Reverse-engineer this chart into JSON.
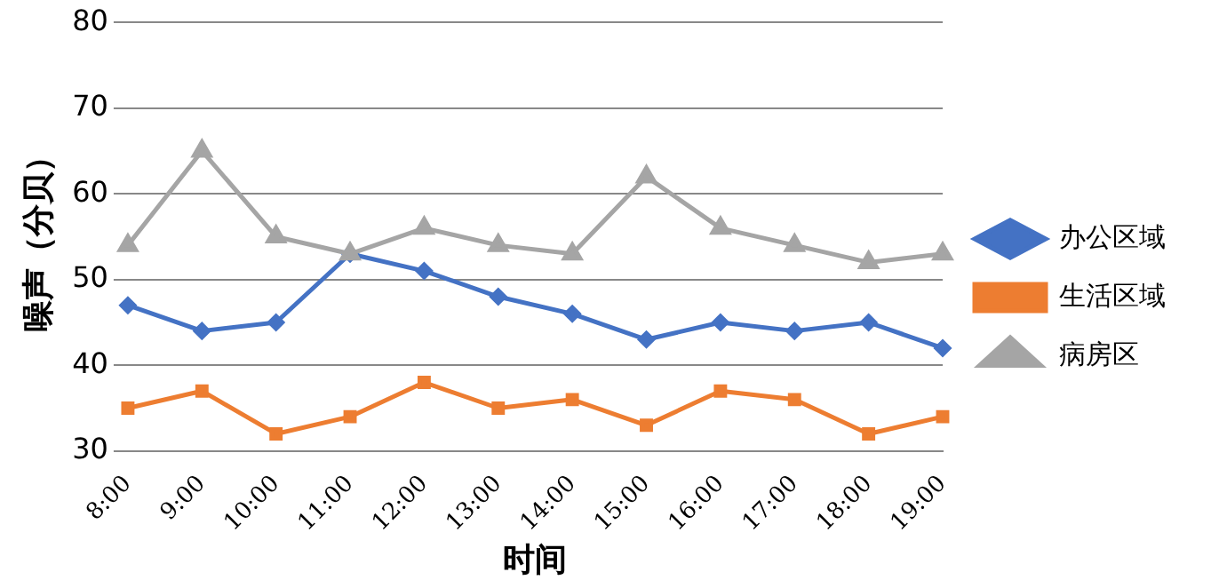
{
  "chart_data": {
    "type": "line",
    "xlabel": "时间",
    "ylabel": "噪声（分贝）",
    "categories": [
      "8:00",
      "9:00",
      "10:00",
      "11:00",
      "12:00",
      "13:00",
      "14:00",
      "15:00",
      "16:00",
      "17:00",
      "18:00",
      "19:00"
    ],
    "series": [
      {
        "name": "办公区域",
        "color": "#4472c4",
        "marker": "diamond",
        "values": [
          47,
          44,
          45,
          53,
          51,
          48,
          46,
          43,
          45,
          44,
          45,
          42
        ]
      },
      {
        "name": "生活区域",
        "color": "#ed7d31",
        "marker": "square",
        "values": [
          35,
          37,
          32,
          34,
          38,
          35,
          36,
          33,
          37,
          36,
          32,
          34
        ]
      },
      {
        "name": "病房区",
        "color": "#a5a5a5",
        "marker": "triangle",
        "values": [
          54,
          65,
          55,
          53,
          56,
          54,
          53,
          62,
          56,
          54,
          52,
          53
        ]
      }
    ],
    "ylim": [
      30,
      80
    ],
    "yticks": [
      30,
      40,
      50,
      60,
      70,
      80
    ],
    "grid": "y",
    "legend": "right"
  }
}
